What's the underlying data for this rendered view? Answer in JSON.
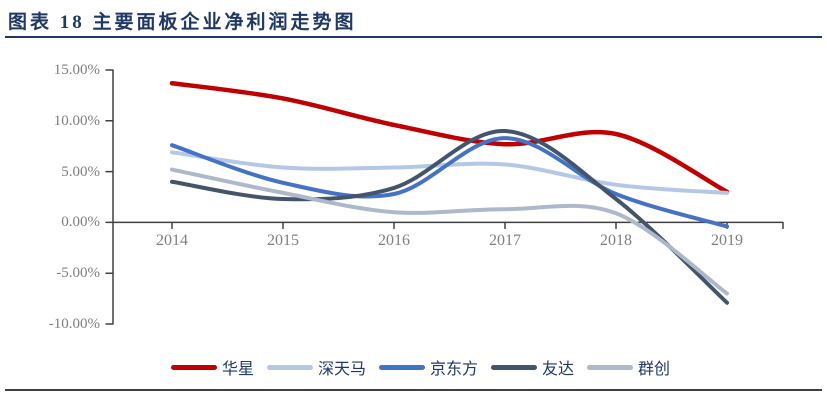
{
  "page": {
    "title": "图表 18 主要面板企业净利润走势图"
  },
  "colors": {
    "title_navy": "#1F3864",
    "axis": "#404040",
    "tick_label_gray": "#7f7f7f",
    "bottom_rule": "#404040"
  },
  "chart_data": {
    "type": "line",
    "title": "主要面板企业净利润走势图",
    "xlabel": "",
    "ylabel": "",
    "unit": "percent",
    "grid": false,
    "legend_position": "bottom",
    "x": [
      2014,
      2015,
      2016,
      2017,
      2018,
      2019
    ],
    "x_tick_labels": [
      "2014",
      "2015",
      "2016",
      "2017",
      "2018",
      "2019"
    ],
    "ylim": [
      -10,
      15
    ],
    "y_ticks": [
      15,
      10,
      5,
      0,
      -5,
      -10
    ],
    "y_tick_labels": [
      "15.00%",
      "10.00%",
      "5.00%",
      "0.00%",
      "-5.00%",
      "-10.00%"
    ],
    "series": [
      {
        "name": "华星",
        "color": "#C00000",
        "values": [
          13.7,
          12.2,
          9.6,
          7.7,
          8.7,
          3.0
        ]
      },
      {
        "name": "深天马",
        "color": "#B4C7E7",
        "values": [
          6.9,
          5.4,
          5.4,
          5.7,
          3.7,
          2.9
        ]
      },
      {
        "name": "京东方",
        "color": "#4472C4",
        "values": [
          7.6,
          3.9,
          2.8,
          8.3,
          2.8,
          -0.4
        ]
      },
      {
        "name": "友达",
        "color": "#44546A",
        "values": [
          4.0,
          2.3,
          3.4,
          9.0,
          2.3,
          -7.9
        ]
      },
      {
        "name": "群创",
        "color": "#ADB9CA",
        "values": [
          5.2,
          2.9,
          1.0,
          1.3,
          0.9,
          -7.0
        ]
      }
    ]
  }
}
